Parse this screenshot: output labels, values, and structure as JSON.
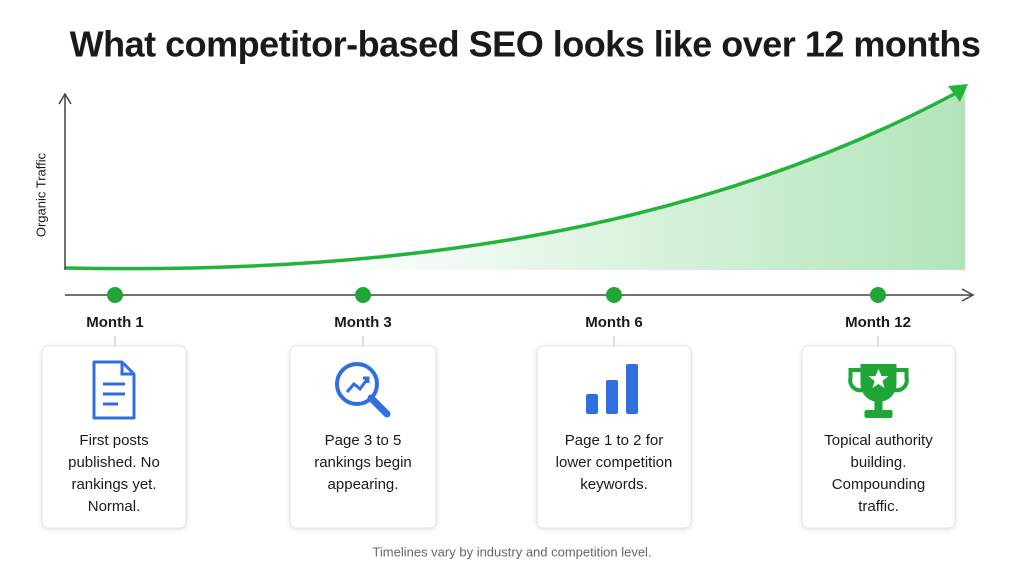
{
  "header": {
    "title": "What competitor-based SEO looks like over 12 months"
  },
  "chart": {
    "y_axis_label": "Organic Traffic"
  },
  "milestones": [
    {
      "label": "Month 1",
      "lines": [
        "First posts",
        "published. No",
        "rankings yet.",
        "Normal."
      ]
    },
    {
      "label": "Month 3",
      "lines": [
        "Page 3 to 5",
        "rankings begin",
        "appearing."
      ]
    },
    {
      "label": "Month 6",
      "lines": [
        "Page 1 to 2 for",
        "lower competition",
        "keywords."
      ]
    },
    {
      "label": "Month 12",
      "lines": [
        "Topical authority",
        "building.",
        "Compounding",
        "traffic."
      ]
    }
  ],
  "footnote": "Timelines vary by industry and competition level."
}
